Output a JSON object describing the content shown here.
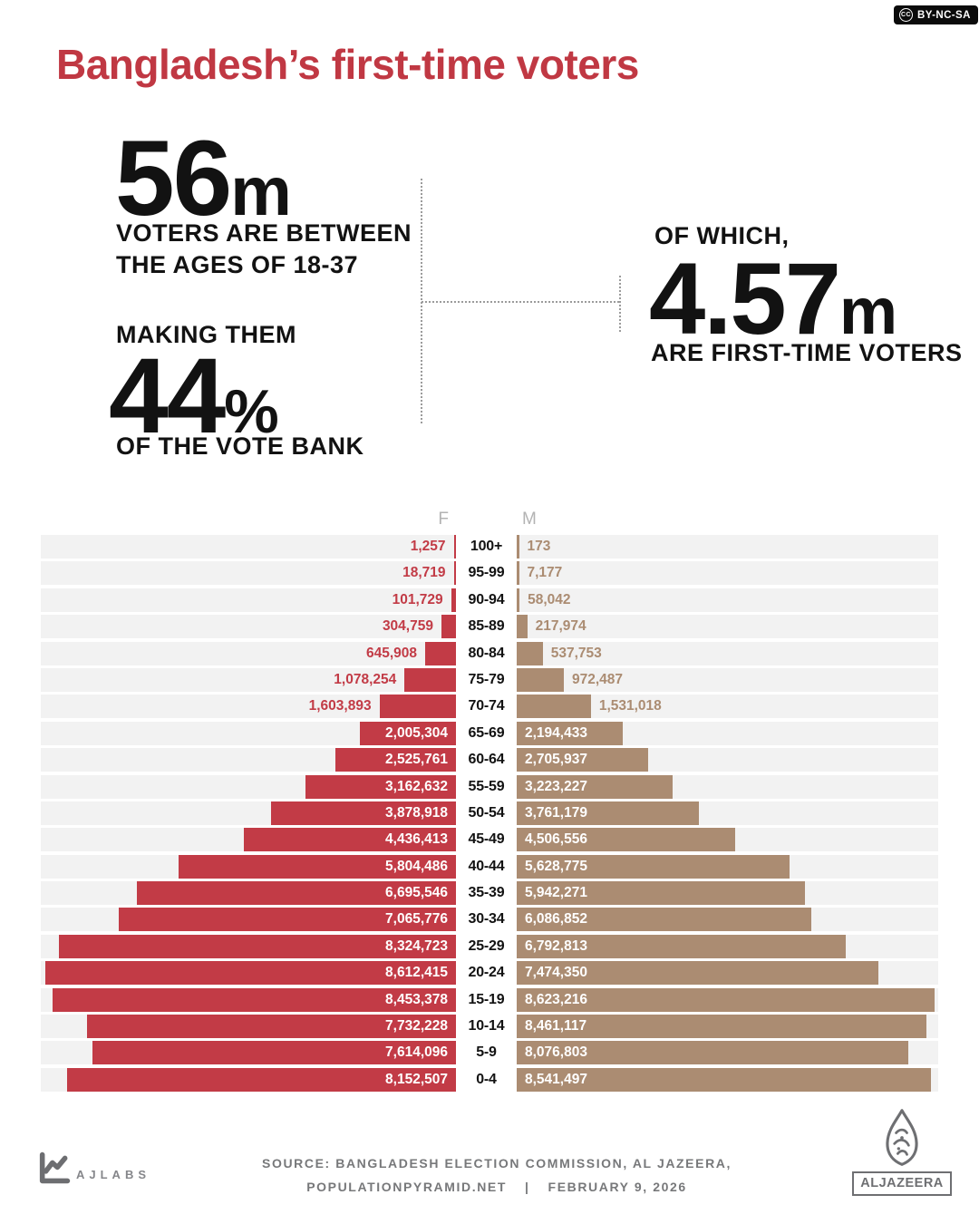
{
  "badge": {
    "cc": "CC",
    "license": "BY-NC-SA"
  },
  "title": "Bangladesh’s first-time voters",
  "stats": {
    "left": {
      "big_number": "56",
      "big_suffix": "m",
      "caption_line1": "VOTERS ARE BETWEEN",
      "caption_line2": "THE AGES OF 18-37",
      "making_them": "MAKING THEM",
      "pct_number": "44",
      "pct_suffix": "%",
      "vote_bank": "OF THE VOTE BANK"
    },
    "right": {
      "of_which": "OF WHICH,",
      "big_number": "4.57",
      "big_suffix": "m",
      "caption": "ARE FIRST-TIME VOTERS"
    }
  },
  "chart_data": {
    "type": "bar",
    "subtype": "population-pyramid",
    "female_header": "F",
    "male_header": "M",
    "categories": [
      "100+",
      "95-99",
      "90-94",
      "85-89",
      "80-84",
      "75-79",
      "70-74",
      "65-69",
      "60-64",
      "55-59",
      "50-54",
      "45-49",
      "40-44",
      "35-39",
      "30-34",
      "25-29",
      "20-24",
      "15-19",
      "10-14",
      "5-9",
      "0-4"
    ],
    "series": [
      {
        "name": "F",
        "color": "#c23b46",
        "values": [
          1257,
          18719,
          101729,
          304759,
          645908,
          1078254,
          1603893,
          2005304,
          2525761,
          3162632,
          3878918,
          4436413,
          5804486,
          6695546,
          7065776,
          8324723,
          8612415,
          8453378,
          7732228,
          7614096,
          8152507
        ]
      },
      {
        "name": "M",
        "color": "#ab8c72",
        "values": [
          173,
          7177,
          58042,
          217974,
          537753,
          972487,
          1531018,
          2194433,
          2705937,
          3223227,
          3761179,
          4506556,
          5628775,
          5942271,
          6086852,
          6792813,
          7474350,
          8623216,
          8461117,
          8076803,
          8541497
        ]
      }
    ],
    "scale_max": 8700000,
    "track_color": "#f2f2f2",
    "legend_position": "top-center",
    "grid": false
  },
  "footer": {
    "ajlabs_label": "AJLABS",
    "source_line1": "SOURCE: BANGLADESH ELECTION COMMISSION, AL JAZEERA,",
    "source_line2_site": "POPULATIONPYRAMID.NET",
    "source_separator": "|",
    "source_date": "FEBRUARY 9, 2026",
    "aljazeera_label": "ALJAZEERA"
  },
  "colors": {
    "female": "#c23b46",
    "male": "#ab8c72",
    "title": "#c03843",
    "track": "#f2f2f2",
    "footer_gray": "#77787a",
    "logo_gray": "#6e6f72"
  }
}
